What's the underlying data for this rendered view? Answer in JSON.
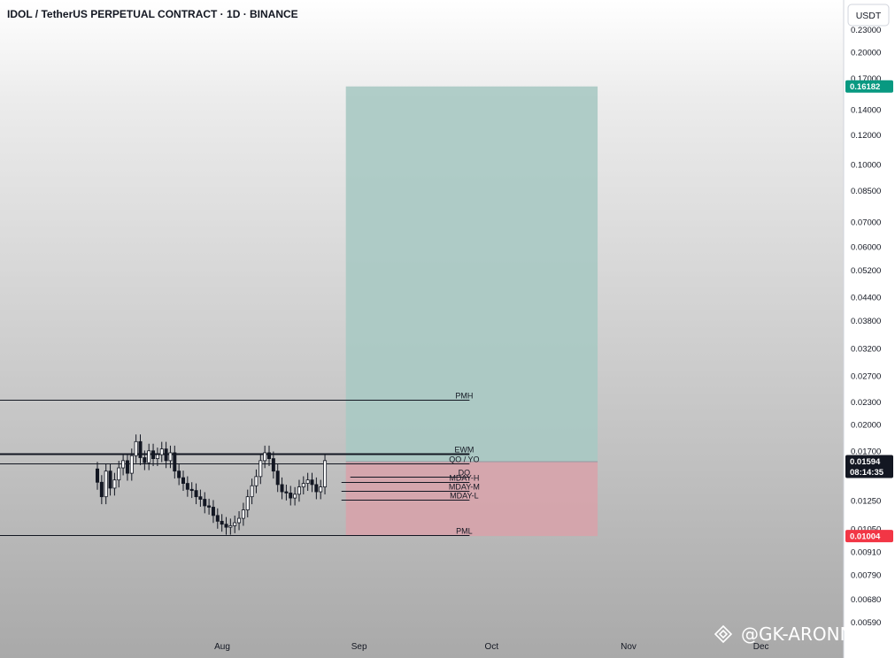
{
  "chart_data": {
    "type": "candlestick",
    "title": "IDOL / TetherUS PERPETUAL CONTRACT · 1D · BINANCE",
    "currency_button": "USDT",
    "y_scale": "log",
    "ylim": [
      0.0056,
      0.245
    ],
    "y_ticks": [
      "0.23000",
      "0.20000",
      "0.17000",
      "0.14000",
      "0.12000",
      "0.10000",
      "0.08500",
      "0.07000",
      "0.06000",
      "0.05200",
      "0.04400",
      "0.03800",
      "0.03200",
      "0.02700",
      "0.02300",
      "0.02000",
      "0.01700",
      "0.01250",
      "0.01050",
      "0.00910",
      "0.00790",
      "0.00680",
      "0.00590"
    ],
    "x_ticks": [
      {
        "label": "Aug",
        "date": "2025-08-01"
      },
      {
        "label": "Sep",
        "date": "2025-09-01"
      },
      {
        "label": "Oct",
        "date": "2025-10-01"
      },
      {
        "label": "Nov",
        "date": "2025-11-01"
      },
      {
        "label": "Dec",
        "date": "2025-12-01"
      }
    ],
    "current_price": {
      "price": "0.01594",
      "countdown": "08:14:35",
      "color": "#131722"
    },
    "target_label": {
      "price": "0.16182",
      "color": "#089981"
    },
    "stop_label": {
      "price": "0.01004",
      "color": "#f23645"
    },
    "position": {
      "start_date": "2025-08-29",
      "end_date": "2025-10-25",
      "entry": 0.0159,
      "target": 0.16182,
      "stop": 0.01004,
      "profit_color": "#a9c9c3",
      "loss_color": "#d7a3ab"
    },
    "levels": [
      {
        "label": "PMH",
        "price": 0.0233,
        "start": "2025-06-01",
        "end": "2025-09-26",
        "weight": 1
      },
      {
        "label": "EWM",
        "price": 0.0167,
        "start": "2025-06-01",
        "end": "2025-09-26",
        "weight": 2
      },
      {
        "label": "QO / YO",
        "price": 0.0157,
        "start": "2025-06-01",
        "end": "2025-09-26",
        "weight": 1
      },
      {
        "label": "DO",
        "price": 0.0145,
        "start": "2025-08-30",
        "end": "2025-09-26",
        "weight": 1
      },
      {
        "label": "MDAY-H",
        "price": 0.014,
        "start": "2025-08-28",
        "end": "2025-09-26",
        "weight": 1
      },
      {
        "label": "MDAY-M",
        "price": 0.0133,
        "start": "2025-08-28",
        "end": "2025-09-26",
        "weight": 1
      },
      {
        "label": "MDAY-L",
        "price": 0.0126,
        "start": "2025-08-28",
        "end": "2025-09-26",
        "weight": 1
      },
      {
        "label": "PML",
        "price": 0.0101,
        "start": "2025-06-01",
        "end": "2025-09-26",
        "weight": 1
      }
    ],
    "candles_up_color": "#ffffff",
    "candles_down_color": "#131722",
    "watermark": "@GK-ARONNO"
  }
}
